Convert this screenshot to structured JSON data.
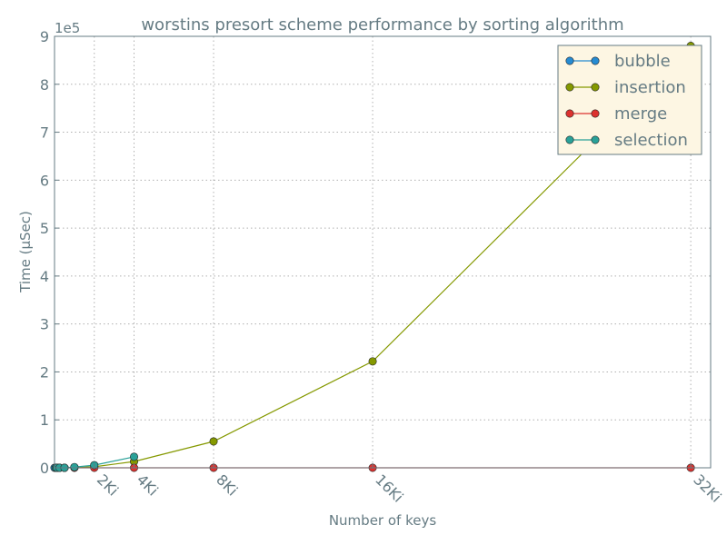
{
  "chart_data": {
    "type": "line",
    "title": "worstins presort scheme performance by sorting algorithm",
    "xlabel": "Number of keys",
    "ylabel": "Time (μSec)",
    "y_exponent_label": "1e5",
    "xlim": [
      0,
      33792
    ],
    "ylim": [
      0,
      900000
    ],
    "x_ticks": [
      {
        "value": 2048,
        "label": "2Ki"
      },
      {
        "value": 4096,
        "label": "4Ki"
      },
      {
        "value": 8192,
        "label": "8Ki"
      },
      {
        "value": 16384,
        "label": "16Ki"
      },
      {
        "value": 32768,
        "label": "32Ki"
      }
    ],
    "y_ticks": [
      {
        "value": 0,
        "label": "0"
      },
      {
        "value": 100000,
        "label": "1"
      },
      {
        "value": 200000,
        "label": "2"
      },
      {
        "value": 300000,
        "label": "3"
      },
      {
        "value": 400000,
        "label": "4"
      },
      {
        "value": 500000,
        "label": "5"
      },
      {
        "value": 600000,
        "label": "6"
      },
      {
        "value": 700000,
        "label": "7"
      },
      {
        "value": 800000,
        "label": "8"
      },
      {
        "value": 900000,
        "label": "9"
      }
    ],
    "grid": true,
    "legend_position": "top-right",
    "series": [
      {
        "name": "bubble",
        "color": "#268bd2",
        "points": [
          [
            0,
            0
          ],
          [
            256,
            0
          ],
          [
            512,
            0
          ]
        ]
      },
      {
        "name": "insertion",
        "color": "#859900",
        "points": [
          [
            64,
            0
          ],
          [
            128,
            0
          ],
          [
            256,
            0
          ],
          [
            512,
            0
          ],
          [
            1024,
            500
          ],
          [
            2048,
            2000
          ],
          [
            4096,
            13000
          ],
          [
            8192,
            55000
          ],
          [
            16384,
            222000
          ],
          [
            32768,
            880000
          ]
        ]
      },
      {
        "name": "merge",
        "color": "#dc322f",
        "points": [
          [
            64,
            0
          ],
          [
            128,
            0
          ],
          [
            256,
            0
          ],
          [
            512,
            0
          ],
          [
            1024,
            0
          ],
          [
            2048,
            0
          ],
          [
            4096,
            0
          ],
          [
            8192,
            0
          ],
          [
            16384,
            0
          ],
          [
            32768,
            0
          ]
        ]
      },
      {
        "name": "selection",
        "color": "#2aa198",
        "points": [
          [
            64,
            0
          ],
          [
            128,
            0
          ],
          [
            256,
            0
          ],
          [
            512,
            0
          ],
          [
            1024,
            1500
          ],
          [
            2048,
            5500
          ],
          [
            4096,
            23000
          ]
        ]
      }
    ]
  },
  "style": {
    "axis_color": "#657b83",
    "grid_color": "#b0b0b0",
    "legend_background": "#fdf6e3"
  }
}
